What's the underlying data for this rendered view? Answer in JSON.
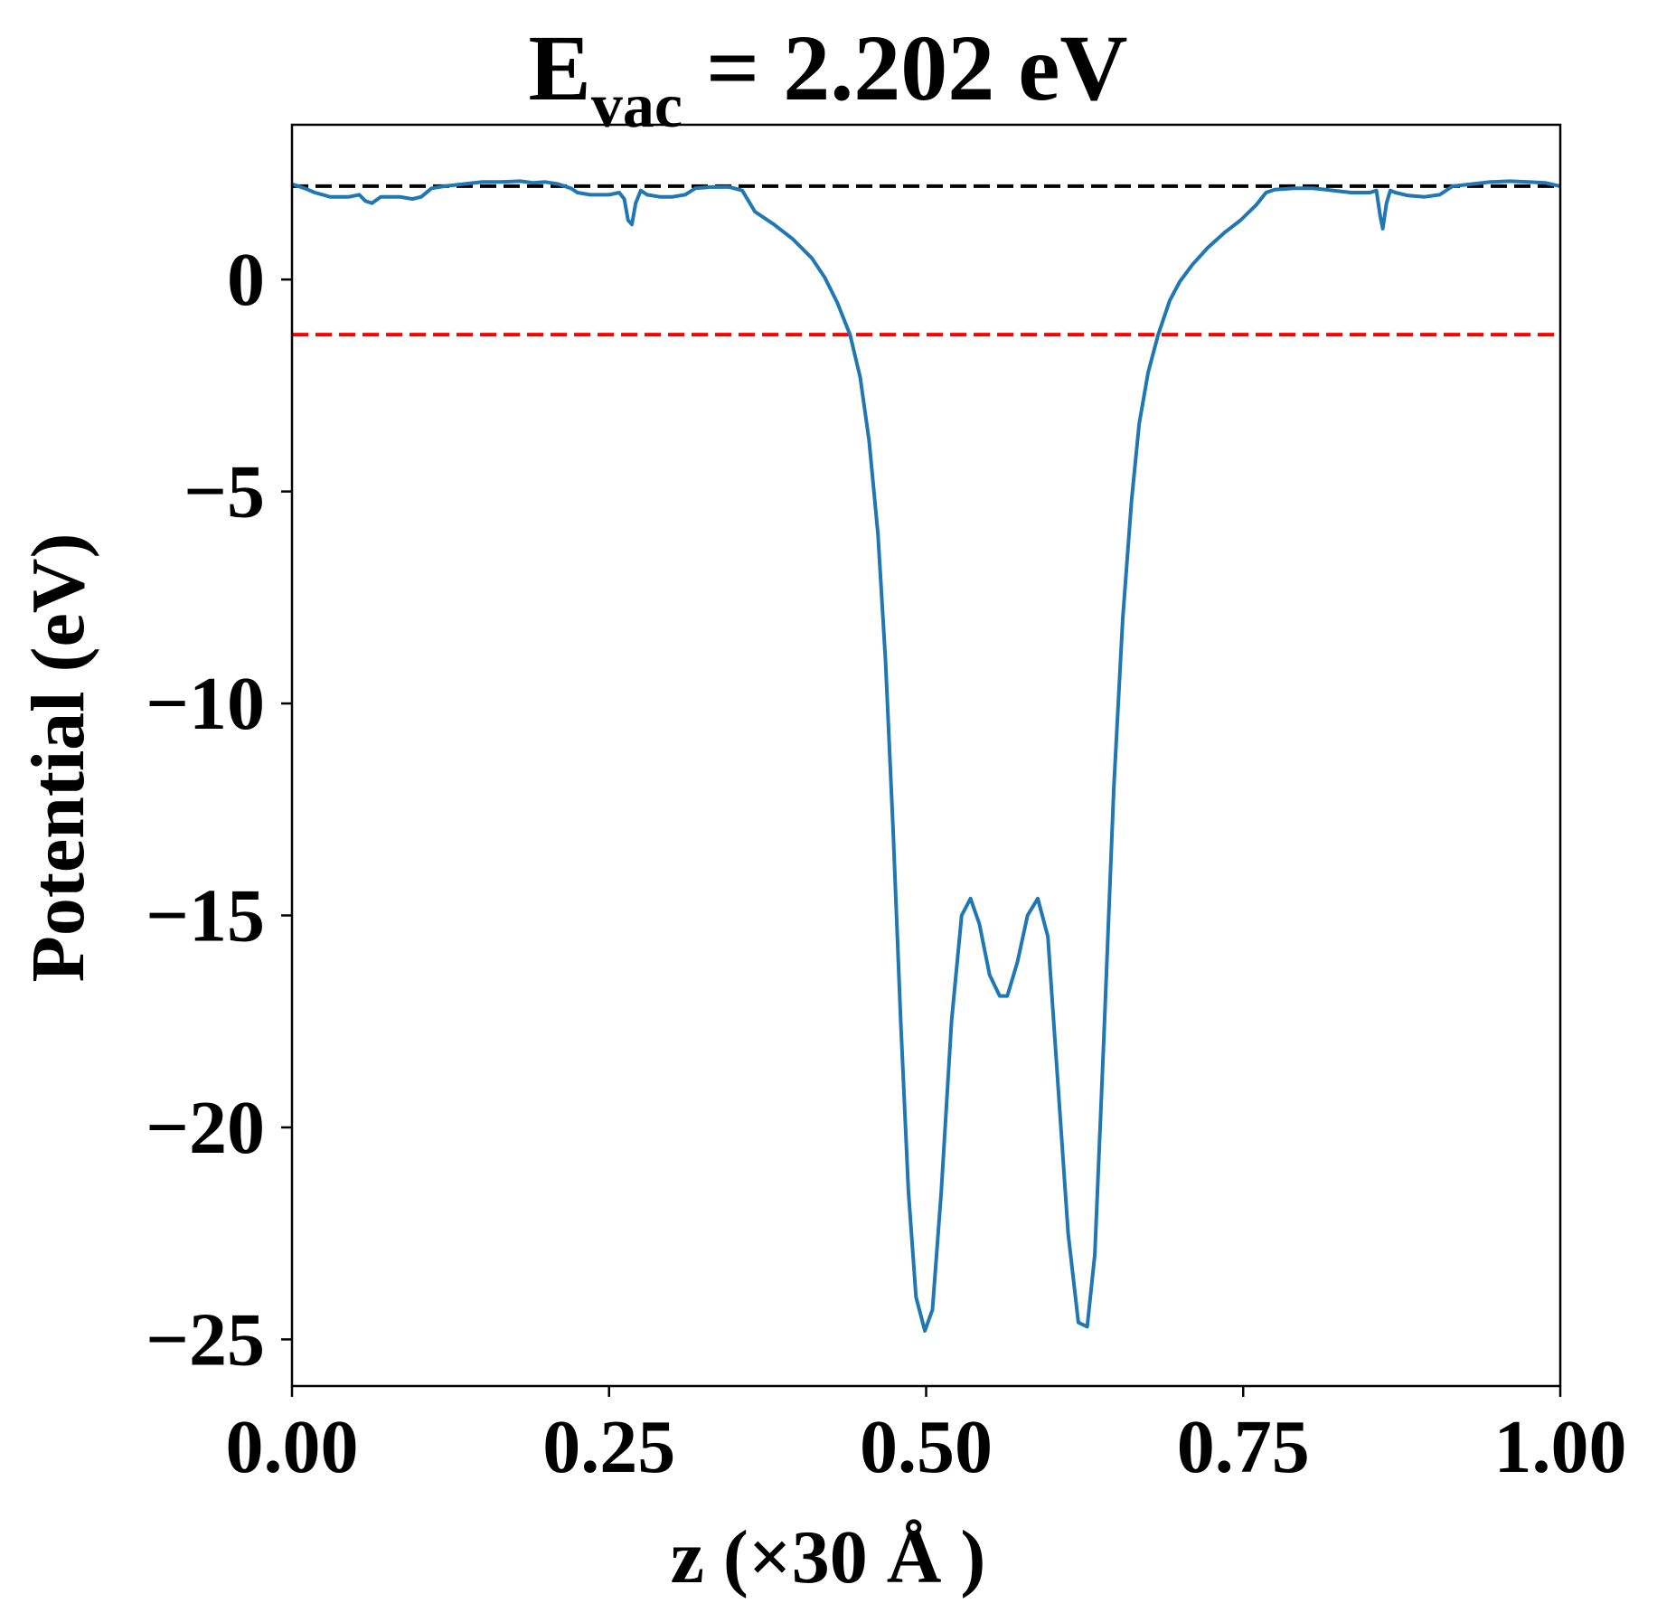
{
  "chart_data": {
    "type": "line",
    "title": {
      "symbol": "E",
      "subscript": "vac",
      "rest": " = 2.202 eV"
    },
    "xlabel": "z (×30 Å )",
    "ylabel": "Potential (eV)",
    "xlim": [
      0.0,
      1.0
    ],
    "ylim": [
      -26.1,
      3.65
    ],
    "xticks": [
      {
        "value": 0.0,
        "label": "0.00"
      },
      {
        "value": 0.25,
        "label": "0.25"
      },
      {
        "value": 0.5,
        "label": "0.50"
      },
      {
        "value": 0.75,
        "label": "0.75"
      },
      {
        "value": 1.0,
        "label": "1.00"
      }
    ],
    "yticks": [
      {
        "value": 0,
        "label": "0"
      },
      {
        "value": -5,
        "label": "−5"
      },
      {
        "value": -10,
        "label": "−10"
      },
      {
        "value": -15,
        "label": "−15"
      },
      {
        "value": -20,
        "label": "−20"
      },
      {
        "value": -25,
        "label": "−25"
      }
    ],
    "grid": false,
    "reference_lines": [
      {
        "y": 2.202,
        "color": "#000000",
        "style": "dashed"
      },
      {
        "y": -1.3,
        "color": "#ff0000",
        "style": "dashed"
      }
    ],
    "series": [
      {
        "color": "#1f77b4",
        "points": [
          [
            0.0,
            2.25
          ],
          [
            0.01,
            2.15
          ],
          [
            0.018,
            2.05
          ],
          [
            0.03,
            1.95
          ],
          [
            0.045,
            1.95
          ],
          [
            0.053,
            2.0
          ],
          [
            0.058,
            1.85
          ],
          [
            0.063,
            1.8
          ],
          [
            0.07,
            1.95
          ],
          [
            0.085,
            1.95
          ],
          [
            0.095,
            1.9
          ],
          [
            0.102,
            1.95
          ],
          [
            0.11,
            2.15
          ],
          [
            0.12,
            2.2
          ],
          [
            0.135,
            2.25
          ],
          [
            0.15,
            2.3
          ],
          [
            0.165,
            2.3
          ],
          [
            0.18,
            2.32
          ],
          [
            0.19,
            2.28
          ],
          [
            0.2,
            2.3
          ],
          [
            0.21,
            2.25
          ],
          [
            0.22,
            2.15
          ],
          [
            0.225,
            2.05
          ],
          [
            0.235,
            2.0
          ],
          [
            0.25,
            2.0
          ],
          [
            0.258,
            2.05
          ],
          [
            0.262,
            1.9
          ],
          [
            0.265,
            1.4
          ],
          [
            0.268,
            1.3
          ],
          [
            0.271,
            1.8
          ],
          [
            0.275,
            2.1
          ],
          [
            0.28,
            2.0
          ],
          [
            0.29,
            1.95
          ],
          [
            0.3,
            1.95
          ],
          [
            0.31,
            2.0
          ],
          [
            0.318,
            2.15
          ],
          [
            0.33,
            2.18
          ],
          [
            0.345,
            2.18
          ],
          [
            0.355,
            2.1
          ],
          [
            0.365,
            1.6
          ],
          [
            0.38,
            1.3
          ],
          [
            0.395,
            0.95
          ],
          [
            0.41,
            0.5
          ],
          [
            0.42,
            0.05
          ],
          [
            0.43,
            -0.55
          ],
          [
            0.44,
            -1.3
          ],
          [
            0.448,
            -2.3
          ],
          [
            0.455,
            -3.8
          ],
          [
            0.462,
            -6.0
          ],
          [
            0.468,
            -9.0
          ],
          [
            0.474,
            -13.0
          ],
          [
            0.48,
            -17.5
          ],
          [
            0.486,
            -21.5
          ],
          [
            0.492,
            -24.0
          ],
          [
            0.499,
            -24.8
          ],
          [
            0.505,
            -24.3
          ],
          [
            0.512,
            -21.5
          ],
          [
            0.52,
            -17.5
          ],
          [
            0.528,
            -15.0
          ],
          [
            0.535,
            -14.6
          ],
          [
            0.542,
            -15.2
          ],
          [
            0.55,
            -16.4
          ],
          [
            0.558,
            -16.9
          ],
          [
            0.564,
            -16.9
          ],
          [
            0.572,
            -16.1
          ],
          [
            0.58,
            -15.0
          ],
          [
            0.588,
            -14.6
          ],
          [
            0.596,
            -15.5
          ],
          [
            0.604,
            -19.0
          ],
          [
            0.612,
            -22.5
          ],
          [
            0.62,
            -24.6
          ],
          [
            0.627,
            -24.7
          ],
          [
            0.633,
            -23.0
          ],
          [
            0.64,
            -18.0
          ],
          [
            0.648,
            -12.0
          ],
          [
            0.655,
            -8.0
          ],
          [
            0.662,
            -5.2
          ],
          [
            0.668,
            -3.4
          ],
          [
            0.675,
            -2.2
          ],
          [
            0.683,
            -1.3
          ],
          [
            0.692,
            -0.5
          ],
          [
            0.7,
            -0.05
          ],
          [
            0.71,
            0.35
          ],
          [
            0.722,
            0.75
          ],
          [
            0.735,
            1.1
          ],
          [
            0.748,
            1.4
          ],
          [
            0.76,
            1.75
          ],
          [
            0.768,
            2.05
          ],
          [
            0.775,
            2.12
          ],
          [
            0.79,
            2.15
          ],
          [
            0.805,
            2.15
          ],
          [
            0.815,
            2.12
          ],
          [
            0.835,
            2.05
          ],
          [
            0.85,
            2.05
          ],
          [
            0.855,
            2.1
          ],
          [
            0.858,
            1.5
          ],
          [
            0.86,
            1.2
          ],
          [
            0.863,
            1.8
          ],
          [
            0.866,
            2.1
          ],
          [
            0.87,
            2.05
          ],
          [
            0.88,
            1.98
          ],
          [
            0.893,
            1.95
          ],
          [
            0.905,
            2.0
          ],
          [
            0.915,
            2.2
          ],
          [
            0.93,
            2.25
          ],
          [
            0.945,
            2.3
          ],
          [
            0.96,
            2.32
          ],
          [
            0.975,
            2.3
          ],
          [
            0.988,
            2.28
          ],
          [
            1.0,
            2.2
          ]
        ]
      }
    ]
  }
}
